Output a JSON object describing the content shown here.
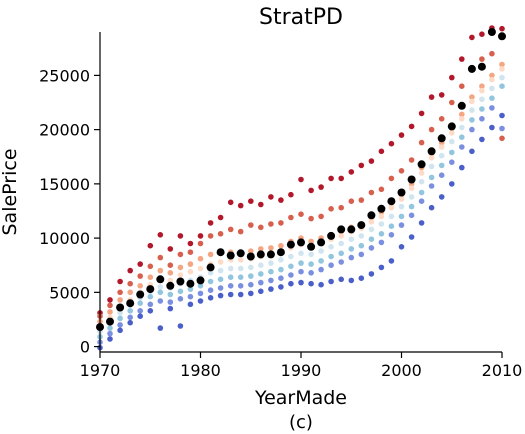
{
  "chart_data": {
    "type": "scatter",
    "title": "StratPD",
    "xlabel": "YearMade",
    "ylabel": "SalePrice",
    "caption": "(c)",
    "xlim": [
      1970,
      2010
    ],
    "ylim": [
      -500,
      29000
    ],
    "xticks": [
      1970,
      1980,
      1990,
      2000,
      2010
    ],
    "yticks": [
      0,
      5000,
      10000,
      15000,
      20000,
      25000
    ],
    "grid": false,
    "legend": "none",
    "x": [
      1970,
      1971,
      1972,
      1973,
      1974,
      1975,
      1976,
      1977,
      1978,
      1979,
      1980,
      1981,
      1982,
      1983,
      1984,
      1985,
      1986,
      1987,
      1988,
      1989,
      1990,
      1991,
      1992,
      1993,
      1994,
      1995,
      1996,
      1997,
      1998,
      1999,
      2000,
      2001,
      2002,
      2003,
      2004,
      2005,
      2006,
      2007,
      2008,
      2009,
      2010
    ],
    "series": [
      {
        "color": "#b2182b",
        "values": [
          3100,
          4300,
          6000,
          7000,
          7600,
          9300,
          10300,
          9000,
          10200,
          9500,
          10200,
          11400,
          11900,
          13300,
          13000,
          13400,
          13100,
          13800,
          13500,
          14000,
          15400,
          14400,
          14700,
          15500,
          15500,
          16100,
          16700,
          17100,
          18000,
          18700,
          19500,
          20300,
          21500,
          23000,
          23200,
          24800,
          26500,
          28500,
          28800,
          29500,
          29300
        ]
      },
      {
        "color": "#d6604d",
        "values": [
          2800,
          3800,
          5000,
          5800,
          6500,
          7400,
          8200,
          7500,
          8500,
          8700,
          9500,
          10200,
          10400,
          10800,
          10600,
          11200,
          11000,
          11300,
          11400,
          11900,
          12200,
          11800,
          12000,
          12700,
          12800,
          13400,
          13500,
          14200,
          14500,
          15500,
          16200,
          17200,
          18800,
          20000,
          21000,
          22500,
          24000,
          25500,
          26500,
          27000,
          19200
        ]
      },
      {
        "color": "#f4a582",
        "values": [
          2300,
          3200,
          4300,
          5000,
          5600,
          6400,
          7000,
          6800,
          7300,
          7600,
          8100,
          8500,
          8600,
          8700,
          8600,
          8800,
          9000,
          9100,
          9300,
          9700,
          10000,
          9700,
          10000,
          10300,
          10600,
          11000,
          11200,
          11900,
          12400,
          13200,
          14000,
          15000,
          16500,
          17800,
          18800,
          20100,
          21400,
          23000,
          24000,
          25000,
          26000
        ]
      },
      {
        "color": "#fddbc7",
        "values": [
          1800,
          2700,
          3600,
          4300,
          5000,
          5700,
          6200,
          6100,
          6600,
          6900,
          7200,
          7600,
          7800,
          8000,
          8000,
          8100,
          8300,
          8500,
          8800,
          9100,
          9400,
          9300,
          9600,
          9900,
          10200,
          10600,
          10900,
          11500,
          12000,
          12800,
          13600,
          14600,
          16000,
          17400,
          18400,
          19700,
          21000,
          22600,
          23600,
          24600,
          25600
        ]
      },
      {
        "color": "#d1e5f0",
        "values": [
          1400,
          2200,
          3100,
          3800,
          4500,
          5100,
          5500,
          5400,
          5800,
          6100,
          6400,
          6800,
          7000,
          7200,
          7200,
          7300,
          7500,
          7700,
          8000,
          8300,
          8600,
          8500,
          8800,
          9200,
          9500,
          9900,
          10200,
          10800,
          11300,
          12000,
          12900,
          13800,
          15200,
          16600,
          17600,
          18900,
          20200,
          21800,
          22800,
          23800,
          24800
        ]
      },
      {
        "color": "#92c5de",
        "values": [
          900,
          1700,
          2600,
          3300,
          4000,
          4600,
          5000,
          4800,
          5100,
          5300,
          5600,
          6000,
          6200,
          6400,
          6400,
          6500,
          6700,
          6900,
          7100,
          7400,
          7700,
          7600,
          7900,
          8300,
          8600,
          9000,
          9300,
          9900,
          10400,
          11100,
          12000,
          12900,
          14200,
          15600,
          16700,
          17900,
          19300,
          20900,
          21900,
          22900,
          24000
        ]
      },
      {
        "color": "#7b8fe0",
        "values": [
          400,
          1200,
          2000,
          2700,
          3300,
          3900,
          4200,
          4100,
          4400,
          4600,
          4900,
          5200,
          5400,
          5600,
          5600,
          5700,
          5900,
          6100,
          6300,
          6600,
          6900,
          6800,
          7100,
          7500,
          7800,
          8200,
          8500,
          9100,
          9600,
          10300,
          11200,
          12100,
          13400,
          14800,
          15800,
          17000,
          18400,
          20000,
          21000,
          22000,
          20100
        ]
      },
      {
        "color": "#4a5fc8",
        "values": [
          -100,
          700,
          1500,
          2200,
          2800,
          3300,
          1700,
          3500,
          1900,
          3900,
          4200,
          4500,
          4700,
          4800,
          4800,
          4900,
          5100,
          5300,
          5500,
          5800,
          5900,
          5800,
          5700,
          6000,
          6200,
          6100,
          6300,
          6700,
          7300,
          7900,
          9200,
          10100,
          11400,
          12800,
          13800,
          15000,
          16500,
          18000,
          19100,
          20200,
          21300
        ]
      },
      {
        "color": "#000000",
        "values": [
          1800,
          2300,
          3600,
          4000,
          4800,
          5300,
          6200,
          5600,
          6000,
          5800,
          6100,
          7300,
          8700,
          8400,
          8600,
          8300,
          8500,
          8500,
          8700,
          9400,
          9600,
          9200,
          9600,
          10200,
          10800,
          10800,
          11200,
          12100,
          12700,
          13400,
          14200,
          15400,
          16800,
          18000,
          19200,
          20300,
          22200,
          25600,
          25800,
          29000,
          28600
        ]
      }
    ]
  }
}
